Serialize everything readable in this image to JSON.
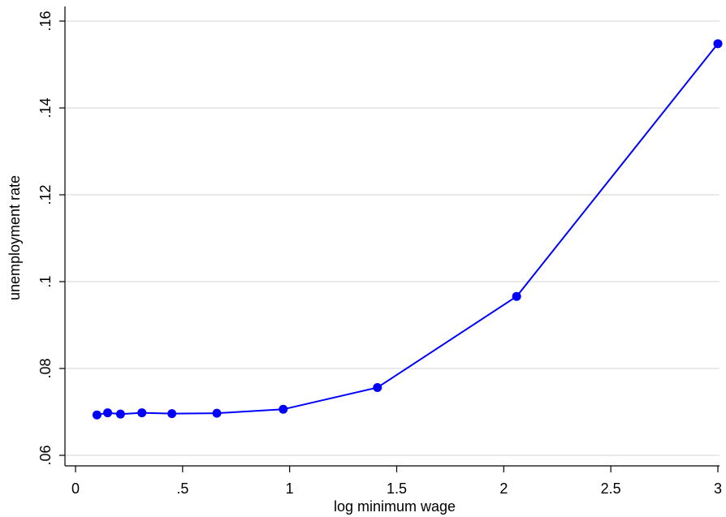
{
  "chart_data": {
    "type": "line",
    "xlabel": "log minimum wage",
    "ylabel": "unemployment rate",
    "xlim": [
      0,
      3
    ],
    "ylim": [
      0.06,
      0.16
    ],
    "xticks": [
      {
        "value": 0,
        "label": "0"
      },
      {
        "value": 0.5,
        "label": ".5"
      },
      {
        "value": 1,
        "label": "1"
      },
      {
        "value": 1.5,
        "label": "1.5"
      },
      {
        "value": 2,
        "label": "2"
      },
      {
        "value": 2.5,
        "label": "2.5"
      },
      {
        "value": 3,
        "label": "3"
      }
    ],
    "yticks": [
      {
        "value": 0.06,
        "label": ".06"
      },
      {
        "value": 0.08,
        "label": ".08"
      },
      {
        "value": 0.1,
        "label": ".1"
      },
      {
        "value": 0.12,
        "label": ".12"
      },
      {
        "value": 0.14,
        "label": ".14"
      },
      {
        "value": 0.16,
        "label": ".16"
      }
    ],
    "grid": "horizontal",
    "colors": {
      "series": "#0000ff",
      "grid": "#d6d6d6",
      "axis": "#000000"
    },
    "series": [
      {
        "x": [
          0.1,
          0.15,
          0.21,
          0.31,
          0.45,
          0.66,
          0.97,
          1.41,
          2.06,
          3.0
        ],
        "y": [
          0.0693,
          0.0698,
          0.0695,
          0.0698,
          0.0696,
          0.0697,
          0.0706,
          0.0756,
          0.0966,
          0.1548
        ]
      }
    ]
  }
}
